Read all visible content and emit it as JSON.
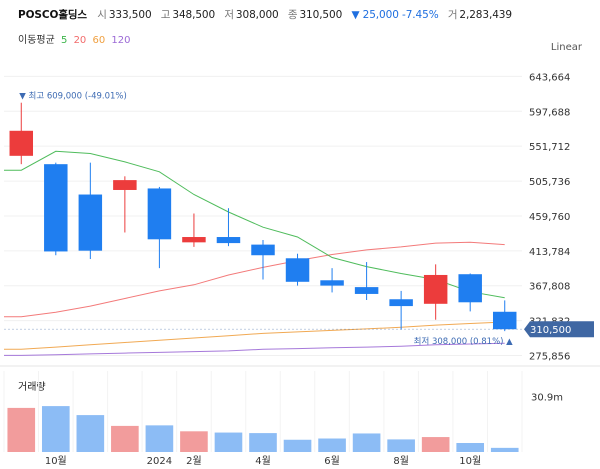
{
  "header": {
    "name": "POSCO홀딩스",
    "open_label": "시",
    "open": "333,500",
    "high_label": "고",
    "high": "348,500",
    "low_label": "저",
    "low": "308,000",
    "close_label": "종",
    "close": "310,500",
    "change": "▼ 25,000 -7.45%",
    "volume_label": "거",
    "volume": "2,283,439"
  },
  "ma_legend": {
    "title": "이동평균",
    "periods": [
      {
        "label": "5",
        "color": "#3cb54a"
      },
      {
        "label": "20",
        "color": "#f26b6b"
      },
      {
        "label": "60",
        "color": "#f0a040"
      },
      {
        "label": "120",
        "color": "#9c6ad6"
      }
    ]
  },
  "scale_mode": "Linear",
  "volume_title": "거래량",
  "colors": {
    "up": "#ec3c3c",
    "down": "#1f7ef0",
    "vol_up": "#f29c9c",
    "vol_down": "#8cbcf5",
    "current_bg": "#3f67a3"
  },
  "chart_data": {
    "type": "candlestick",
    "title": "POSCO홀딩스",
    "y_ticks": [
      643664,
      597688,
      551712,
      505736,
      459760,
      413784,
      367808,
      321832,
      275856
    ],
    "y_tick_labels": [
      "643,664",
      "597,688",
      "551,712",
      "505,736",
      "459,760",
      "413,784",
      "367,808",
      "321,832",
      "275,856"
    ],
    "ylim": [
      266000,
      660000
    ],
    "x_labels": [
      {
        "index": 1,
        "label": "10월"
      },
      {
        "index": 4,
        "label": "2024"
      },
      {
        "index": 5,
        "label": "2월"
      },
      {
        "index": 7,
        "label": "4월"
      },
      {
        "index": 9,
        "label": "6월"
      },
      {
        "index": 11,
        "label": "8월"
      },
      {
        "index": 13,
        "label": "10월"
      }
    ],
    "candles": [
      {
        "open": 539000,
        "high": 609000,
        "low": 528000,
        "close": 572000
      },
      {
        "open": 528000,
        "high": 530000,
        "low": 408000,
        "close": 413000
      },
      {
        "open": 488000,
        "high": 530000,
        "low": 403000,
        "close": 414000
      },
      {
        "open": 494000,
        "high": 512000,
        "low": 438000,
        "close": 507000
      },
      {
        "open": 496000,
        "high": 498000,
        "low": 391000,
        "close": 429000
      },
      {
        "open": 425000,
        "high": 463000,
        "low": 419000,
        "close": 432000
      },
      {
        "open": 432000,
        "high": 470000,
        "low": 420000,
        "close": 424000
      },
      {
        "open": 422000,
        "high": 428000,
        "low": 376000,
        "close": 408000
      },
      {
        "open": 404000,
        "high": 410000,
        "low": 368000,
        "close": 373000
      },
      {
        "open": 375000,
        "high": 391000,
        "low": 359000,
        "close": 368000
      },
      {
        "open": 366000,
        "high": 399000,
        "low": 349000,
        "close": 357000
      },
      {
        "open": 350000,
        "high": 361000,
        "low": 310000,
        "close": 341000
      },
      {
        "open": 344000,
        "high": 396000,
        "low": 323000,
        "close": 382000
      },
      {
        "open": 383000,
        "high": 384000,
        "low": 334000,
        "close": 346000
      },
      {
        "open": 333500,
        "high": 348500,
        "low": 308000,
        "close": 310500
      }
    ],
    "ma5": [
      520000,
      545000,
      542000,
      531000,
      518000,
      488000,
      465000,
      445000,
      432000,
      405000,
      393000,
      384000,
      376000,
      360000,
      352000
    ],
    "ma20": [
      327000,
      333000,
      341000,
      351000,
      361000,
      369000,
      382000,
      392000,
      401000,
      409000,
      415000,
      419000,
      424000,
      425000,
      422000
    ],
    "ma60": [
      284000,
      287000,
      290000,
      293000,
      296000,
      299000,
      302000,
      305000,
      307000,
      309000,
      311000,
      313000,
      316000,
      318000,
      320000
    ],
    "ma120": [
      276000,
      277000,
      278000,
      279000,
      280000,
      281000,
      282000,
      284000,
      285000,
      286000,
      287000,
      288000,
      290000,
      291000,
      292000
    ],
    "volume": [
      24.5,
      25.5,
      20.5,
      14.5,
      14.8,
      11.5,
      10.8,
      10.5,
      6.8,
      7.5,
      10.3,
      7.0,
      8.3,
      5.0,
      2.3
    ],
    "volume_tick": 30.9,
    "volume_tick_label": "30.9m",
    "volume_max": 45,
    "annotations": {
      "high_text": "▼ 최고 609,000 (-49.01%)",
      "low_text": "최저 308,000 (0.81%) ▲",
      "current_price_label": "310,500"
    }
  }
}
